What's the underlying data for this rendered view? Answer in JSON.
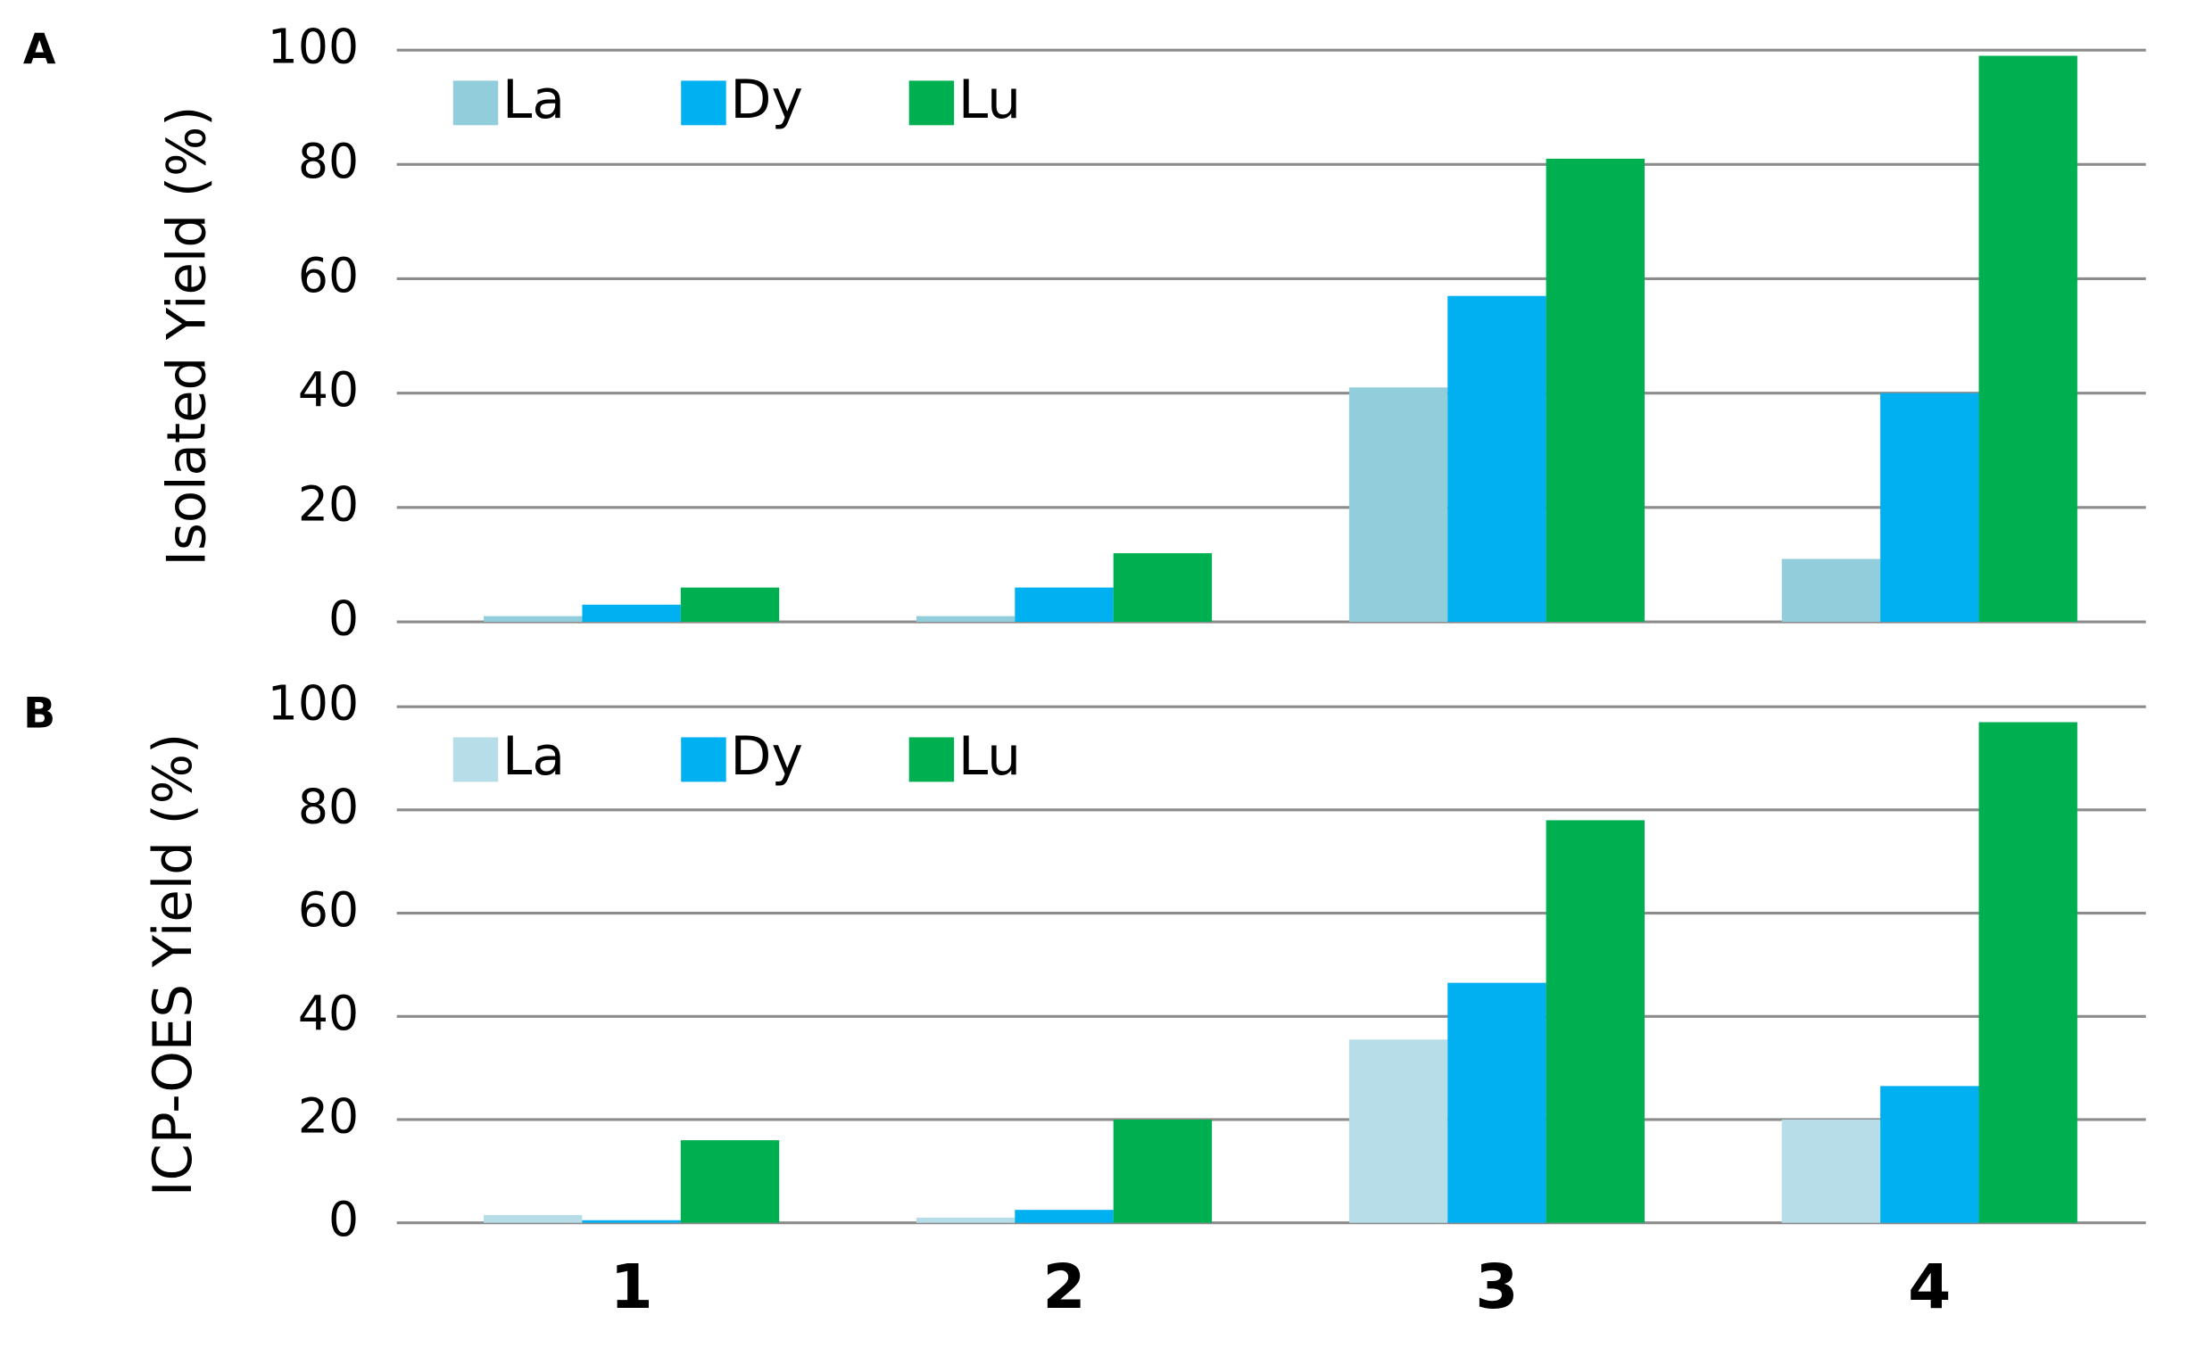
{
  "chart_data": [
    {
      "type": "bar",
      "panel_label": "A",
      "y_label": "Isolated Yield (%)",
      "categories": [
        null,
        null,
        null,
        null
      ],
      "series": [
        {
          "name": "La",
          "color": "#92cddc",
          "values": [
            1,
            1,
            41,
            11
          ]
        },
        {
          "name": "Dy",
          "color": "#00b0f0",
          "values": [
            3,
            6,
            57,
            40
          ]
        },
        {
          "name": "Lu",
          "color": "#00b050",
          "values": [
            6,
            12,
            81,
            99
          ]
        }
      ],
      "ylim": [
        0,
        100
      ],
      "yticks": [
        0,
        20,
        40,
        60,
        80,
        100
      ],
      "grid": true,
      "legend": "top-left"
    },
    {
      "type": "bar",
      "panel_label": "B",
      "y_label": "ICP-OES Yield (%)",
      "categories": [
        "1",
        "2",
        "3",
        "4"
      ],
      "series": [
        {
          "name": "La",
          "color": "#b7dde8",
          "values": [
            1.5,
            1,
            35.5,
            20
          ]
        },
        {
          "name": "Dy",
          "color": "#00b0f0",
          "values": [
            0.5,
            2.5,
            46.5,
            26.5
          ]
        },
        {
          "name": "Lu",
          "color": "#00b050",
          "values": [
            16,
            20,
            78,
            97
          ]
        }
      ],
      "ylim": [
        0,
        100
      ],
      "yticks": [
        0,
        20,
        40,
        60,
        80,
        100
      ],
      "grid": true,
      "legend": "top-left"
    }
  ]
}
